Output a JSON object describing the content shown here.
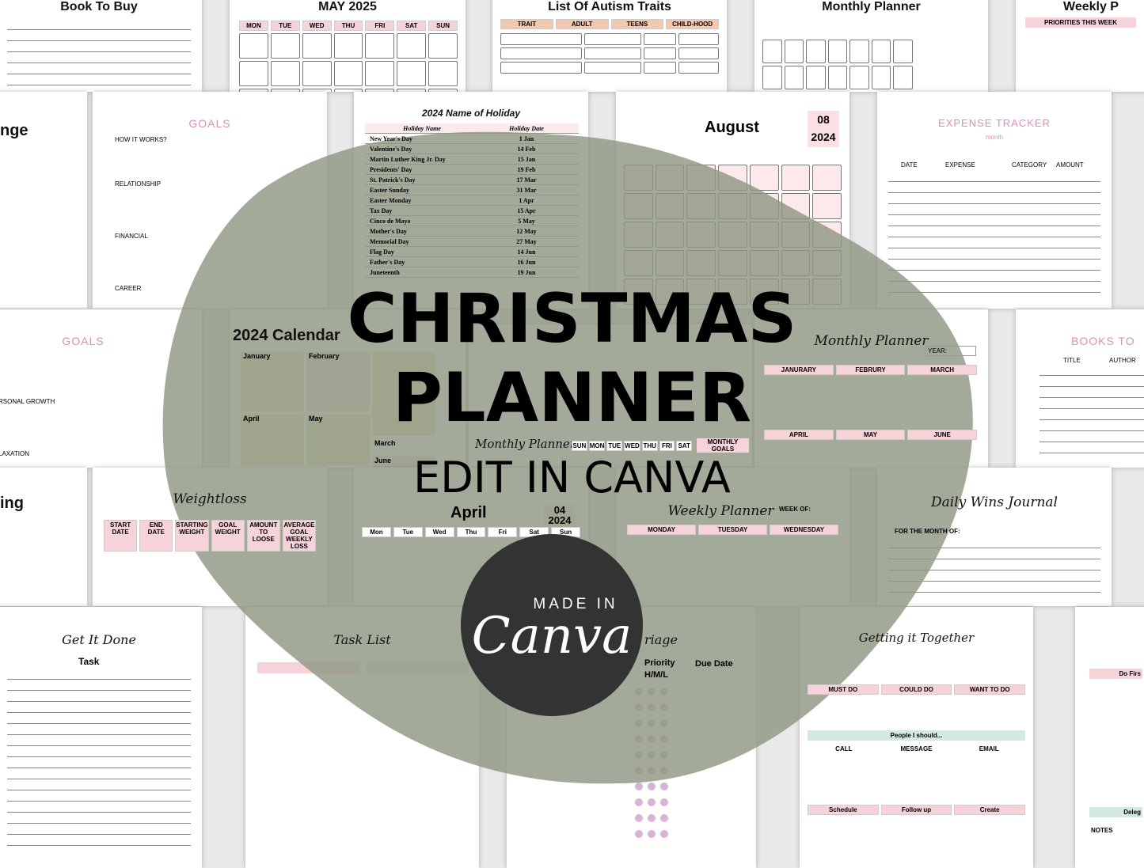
{
  "headline": {
    "line1": "CHRISTMAS",
    "line2": "PLANNER",
    "line3": "EDIT IN CANVA"
  },
  "badge": {
    "made_in": "MADE IN",
    "brand": "Canva"
  },
  "colors": {
    "blob": "#9aa08f",
    "badge": "#333333",
    "pink": "#f6d3d9",
    "accent_pink": "#e0a3c4"
  },
  "sheets": {
    "book_to_buy": "Book To Buy",
    "may": "MAY 2025",
    "may_days": [
      "MON",
      "TUE",
      "WED",
      "THU",
      "FRI",
      "SAT",
      "SUN"
    ],
    "autism": "List Of Autism Traits",
    "autism_cols": [
      "TRAIT",
      "ADULT",
      "TEENS",
      "CHILD-HOOD"
    ],
    "monthly_top": "Monthly Planner",
    "weekly_top": "Weekly P",
    "weekly_top_sub": "PRIORITIES THIS WEEK",
    "change": "nge",
    "goals": "GOALS",
    "goals_how": "HOW IT WORKS?",
    "goals_cats": [
      "RELATIONSHIP",
      "FINANCIAL",
      "CAREER"
    ],
    "holiday_title": "2024 Name of Holiday",
    "holiday_cols": [
      "Holiday Name",
      "Holiday Date"
    ],
    "holidays": [
      [
        "New Year's Day",
        "1 Jan"
      ],
      [
        "Valentine's Day",
        "14 Feb"
      ],
      [
        "Martin Luther King Jr. Day",
        "15 Jan"
      ],
      [
        "Presidents' Day",
        "19 Feb"
      ],
      [
        "St. Patrick's Day",
        "17 Mar"
      ],
      [
        "Easter Sunday",
        "31 Mar"
      ],
      [
        "Easter Monday",
        "1 Apr"
      ],
      [
        "Tax Day",
        "15 Apr"
      ],
      [
        "Cinco de Mayo",
        "5 May"
      ],
      [
        "Mother's Day",
        "12 May"
      ],
      [
        "Memorial Day",
        "27 May"
      ],
      [
        "Flag Day",
        "14 Jun"
      ],
      [
        "Father's Day",
        "16 Jun"
      ],
      [
        "Juneteenth",
        "19 Jun"
      ]
    ],
    "august": "August",
    "august_num": "08",
    "august_year": "2024",
    "week_short": [
      "Mon",
      "Tue",
      "Wed",
      "Thu",
      "Fri",
      "Sat",
      "Sun"
    ],
    "expense": "EXPENSE TRACKER",
    "expense_month": "month",
    "expense_cols": [
      "DATE",
      "EXPENSE",
      "CATEGORY",
      "AMOUNT"
    ],
    "goals2": "GOALS",
    "goals2_cats": [
      "RSONAL GROWTH",
      "LAXATION"
    ],
    "calendar": "2024 Calendar",
    "cal_months": [
      "January",
      "February",
      "March",
      "April",
      "May",
      "June"
    ],
    "monthly_mid": "Monthly Planner",
    "monthly_mid_goals": "MONTHLY GOALS",
    "monthly_mid_days": [
      "SUN",
      "MON",
      "TUE",
      "WED",
      "THU",
      "FRI",
      "SAT"
    ],
    "monthly_right": "Monthly Planner",
    "monthly_right_year": "YEAR:",
    "monthly_right_months": [
      "JANURARY",
      "FEBRURY",
      "MARCH",
      "APRIL",
      "MAY",
      "JUNE"
    ],
    "books": "BOOKS TO",
    "books_cols": [
      "TITLE",
      "AUTHOR"
    ],
    "ing": "ing",
    "weightloss": "Weightloss",
    "weightloss_cols": [
      "START DATE",
      "END DATE",
      "STARTING WEIGHT",
      "GOAL WEIGHT",
      "AMOUNT TO LOOSE",
      "AVERAGE GOAL WEEKLY LOSS"
    ],
    "april": "April",
    "april_num": "04",
    "april_year": "2024",
    "weekly": "Weekly Planner",
    "weekly_weekof": "WEEK OF:",
    "weekly_days": [
      "MONDAY",
      "TUESDAY",
      "WEDNESDAY"
    ],
    "wins": "Daily Wins Journal",
    "wins_month": "FOR THE MONTH OF:",
    "get_it_done": "Get It Done",
    "get_it_done_col": "Task",
    "task_list": "Task List",
    "marriage": "riage",
    "priority": "Priority H/M/L",
    "due_date": "Due Date",
    "together": "Getting it Together",
    "together_cols": [
      "MUST DO",
      "COULD DO",
      "WANT TO DO"
    ],
    "together_people": "People I should...",
    "together_people_cols": [
      "CALL",
      "MESSAGE",
      "EMAIL"
    ],
    "together_actions": [
      "Schedule",
      "Follow up",
      "Create"
    ],
    "right_do": "Do Firs",
    "right_dele": "Deleg",
    "right_notes": "NOTES"
  }
}
